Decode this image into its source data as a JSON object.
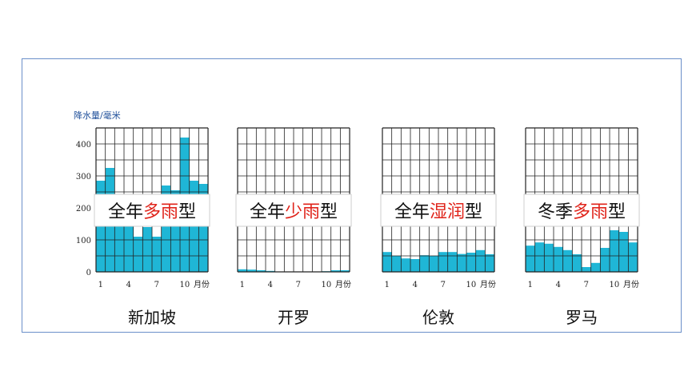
{
  "chart_data": {
    "type": "bar",
    "ylabel": "降水量/毫米",
    "y_ticks": [
      0,
      100,
      200,
      300,
      400
    ],
    "ylim": [
      0,
      450
    ],
    "x_ticks": [
      "1",
      "4",
      "7",
      "10"
    ],
    "x_unit": "月份",
    "bar_color": "#1fb6d6",
    "accent_color": "#e0241b",
    "panels": [
      {
        "city": "新加坡",
        "type_label": {
          "pre": "全年",
          "hl": "多雨",
          "post": "型"
        },
        "values": [
          285,
          325,
          225,
          195,
          110,
          140,
          110,
          270,
          255,
          420,
          285,
          275
        ]
      },
      {
        "city": "开罗",
        "type_label": {
          "pre": "全年",
          "hl": "少雨",
          "post": "型"
        },
        "values": [
          8,
          7,
          5,
          3,
          1,
          0,
          0,
          0,
          0,
          2,
          5,
          5
        ]
      },
      {
        "city": "伦敦",
        "type_label": {
          "pre": "全年",
          "hl": "湿润",
          "post": "型"
        },
        "values": [
          62,
          50,
          42,
          40,
          52,
          50,
          62,
          62,
          56,
          60,
          68,
          55
        ]
      },
      {
        "city": "罗马",
        "type_label": {
          "pre": "冬季",
          "hl": "多雨",
          "post": "型"
        },
        "values": [
          82,
          92,
          88,
          78,
          68,
          55,
          15,
          28,
          75,
          130,
          125,
          92
        ]
      }
    ]
  }
}
